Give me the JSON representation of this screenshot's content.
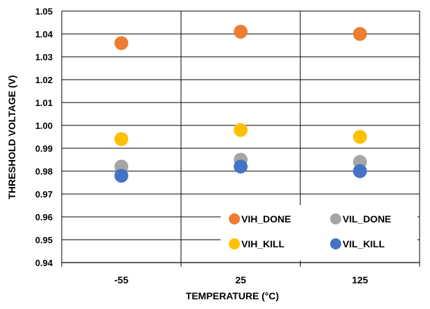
{
  "chart_data": {
    "type": "scatter",
    "title": "",
    "xlabel": "TEMPERATURE (°C)",
    "ylabel": "THRESHOLD VOLTAGE (V)",
    "categories": [
      "-55",
      "25",
      "125"
    ],
    "ylim": [
      0.94,
      1.05
    ],
    "yticks": [
      "0.94",
      "0.95",
      "0.96",
      "0.97",
      "0.98",
      "0.99",
      "1.00",
      "1.01",
      "1.02",
      "1.03",
      "1.04",
      "1.05"
    ],
    "grid": true,
    "legend_position": "bottom-right",
    "series": [
      {
        "name": "VIH_DONE",
        "color": "#ED7D31",
        "values": [
          1.036,
          1.041,
          1.04
        ]
      },
      {
        "name": "VIL_DONE",
        "color": "#A5A5A5",
        "values": [
          0.982,
          0.985,
          0.984
        ]
      },
      {
        "name": "VIH_KILL",
        "color": "#FFC000",
        "values": [
          0.994,
          0.998,
          0.995
        ]
      },
      {
        "name": "VIL_KILL",
        "color": "#4472C4",
        "values": [
          0.978,
          0.982,
          0.98
        ]
      }
    ]
  }
}
